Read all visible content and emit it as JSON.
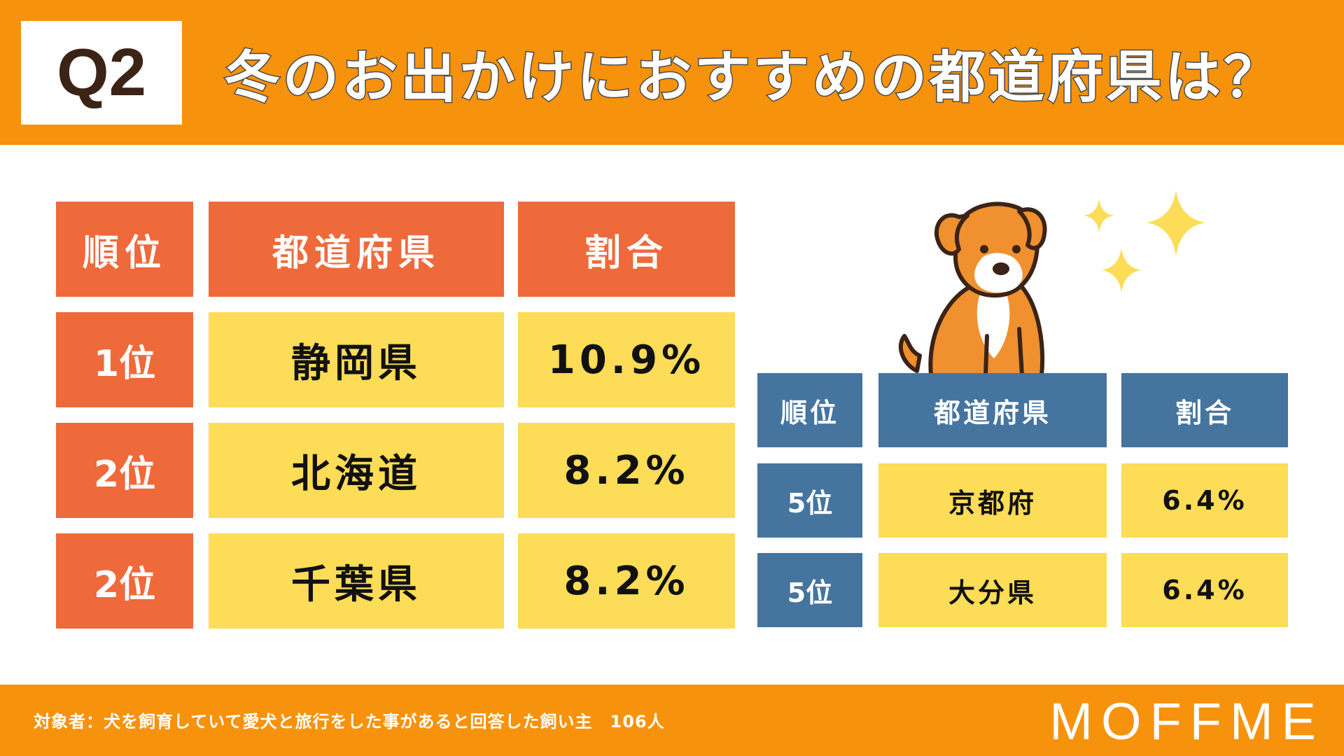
{
  "header": {
    "badge": "Q2",
    "title": "冬のお出かけにおすすめの都道府県は？"
  },
  "colors": {
    "orange": "#f7920c",
    "red_orange": "#ee6a3b",
    "yellow": "#fddc57",
    "blue": "#45749f"
  },
  "chart_data": [
    {
      "type": "table",
      "columns": [
        "順位",
        "都道府県",
        "割合"
      ],
      "rows": [
        [
          "1位",
          "静岡県",
          "10.9%"
        ],
        [
          "2位",
          "北海道",
          "8.2%"
        ],
        [
          "2位",
          "千葉県",
          "8.2%"
        ]
      ]
    },
    {
      "type": "table",
      "columns": [
        "順位",
        "都道府県",
        "割合"
      ],
      "rows": [
        [
          "5位",
          "京都府",
          "6.4%"
        ],
        [
          "5位",
          "大分県",
          "6.4%"
        ]
      ]
    }
  ],
  "footer": {
    "note": "対象者：犬を飼育していて愛犬と旅行をした事があると回答した飼い主　106人",
    "logo": "MOFFME"
  },
  "icons": {
    "dog": "dog-illustration",
    "sparkle": "sparkle-icon"
  }
}
